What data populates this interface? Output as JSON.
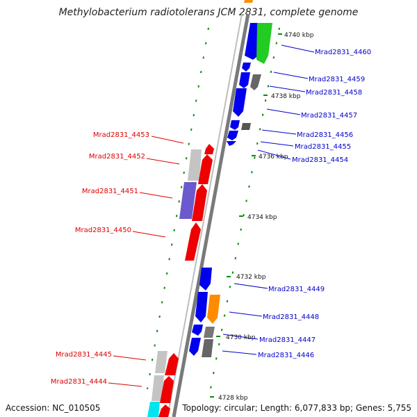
{
  "title": "Methylobacterium radiotolerans JCM 2831, complete genome",
  "footer": {
    "accession": "Accession: NC_010505",
    "summary": "Topology: circular; Length: 6,077,833 bp; Genes: 5,755"
  },
  "colors": {
    "forward_label": "#0000cc",
    "reverse_label": "#dd0000",
    "backbone": "#888888",
    "tick": "#0a8a0a"
  },
  "kbp_markers": [
    {
      "label": "4740 kbp"
    },
    {
      "label": "4738 kbp"
    },
    {
      "label": "4736 kbp"
    },
    {
      "label": "4734 kbp"
    },
    {
      "label": "4732 kbp"
    },
    {
      "label": "4730 kbp"
    },
    {
      "label": "4728 kbp"
    }
  ],
  "forward_genes": [
    {
      "label": "Mrad2831_4460"
    },
    {
      "label": "Mrad2831_4459"
    },
    {
      "label": "Mrad2831_4458"
    },
    {
      "label": "Mrad2831_4457"
    },
    {
      "label": "Mrad2831_4456"
    },
    {
      "label": "Mrad2831_4455"
    },
    {
      "label": "Mrad2831_4454"
    },
    {
      "label": "Mrad2831_4449"
    },
    {
      "label": "Mrad2831_4448"
    },
    {
      "label": "Mrad2831_4447"
    },
    {
      "label": "Mrad2831_4446"
    }
  ],
  "reverse_genes": [
    {
      "label": "Mrad2831_4453"
    },
    {
      "label": "Mrad2831_4452"
    },
    {
      "label": "Mrad2831_4451"
    },
    {
      "label": "Mrad2831_4450"
    },
    {
      "label": "Mrad2831_4445"
    },
    {
      "label": "Mrad2831_4444"
    }
  ]
}
